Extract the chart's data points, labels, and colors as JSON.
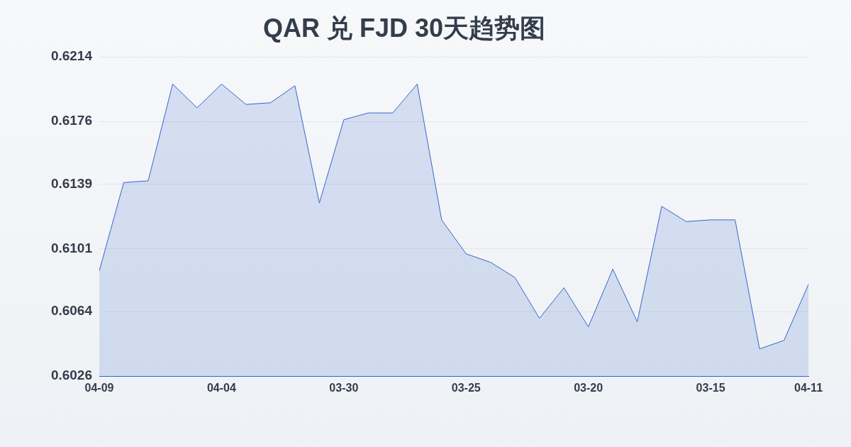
{
  "chart_data": {
    "type": "area",
    "title": "QAR 兑 FJD 30天趋势图",
    "categories": [
      "04-09",
      null,
      null,
      null,
      null,
      "04-04",
      null,
      null,
      null,
      null,
      "03-30",
      null,
      null,
      null,
      null,
      "03-25",
      null,
      null,
      null,
      null,
      "03-20",
      null,
      null,
      null,
      null,
      "03-15",
      null,
      null,
      null,
      "04-11"
    ],
    "series": [
      {
        "color": "#3366cc",
        "values": [
          0.6088,
          0.614,
          0.6141,
          0.6198,
          0.6184,
          0.6198,
          0.6186,
          0.6187,
          0.6197,
          0.6128,
          0.6177,
          0.6181,
          0.6181,
          0.6198,
          0.6118,
          0.6098,
          0.6093,
          0.6084,
          0.606,
          0.6078,
          0.6055,
          0.6089,
          0.6058,
          0.6126,
          0.6117,
          0.6118,
          0.6118,
          0.6042,
          0.6047,
          0.608
        ]
      }
    ],
    "ylim": [
      0.6026,
      0.6214
    ],
    "yticks": [
      0.6026,
      0.6064,
      0.6101,
      0.6139,
      0.6176,
      0.6214
    ],
    "grid": "y",
    "legend": false,
    "marker": "none",
    "line_style": "solid"
  }
}
